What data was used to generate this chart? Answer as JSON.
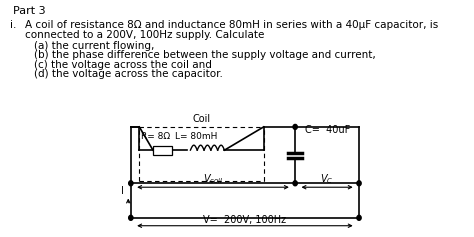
{
  "title": "Part 3",
  "background_color": "#ffffff",
  "text_color": "#000000",
  "problem_label": "i.",
  "line1": "A coil of resistance 8Ω and inductance 80mH in series with a 40μF capacitor, is",
  "line2": "connected to a 200V, 100Hz supply. Calculate",
  "sub_items": [
    "(a) the current flowing,",
    "(b) the phase difference between the supply voltage and current,",
    "(c) the voltage across the coil and",
    "(d) the voltage across the capacitor."
  ],
  "R_label": "R= 8Ω",
  "L_label": "L= 80mH",
  "C_label": "C=  40uF",
  "coil_label": "Coil",
  "V_label": "V=  200V, 100Hz",
  "I_label": "I",
  "font_family": "DejaVu Sans",
  "title_fontsize": 8,
  "body_fontsize": 7.5,
  "sub_fontsize": 7.5,
  "circuit_fontsize": 7
}
